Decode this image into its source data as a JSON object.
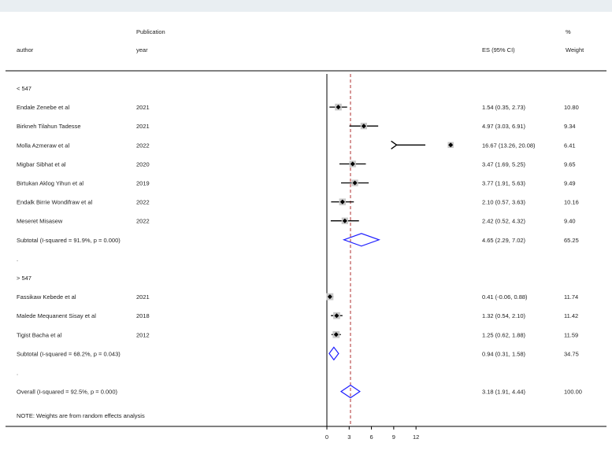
{
  "header": {
    "author": "author",
    "publication": "Publication",
    "year": "year",
    "es": "ES (95% CI)",
    "pct": "%",
    "weight": "Weight"
  },
  "note": "NOTE: Weights are from random effects analysis",
  "colors": {
    "diamond": "#1f1fff",
    "line": "#000000",
    "dashed": "#b03030",
    "background": "#e9eef2"
  },
  "chart_data": {
    "type": "forest",
    "null_line": 0,
    "overall_line": 3.18,
    "x_ticks": [
      "0",
      "3",
      "6",
      "9",
      "12"
    ],
    "xlim": [
      0,
      12
    ],
    "groups": [
      {
        "label": "< 547",
        "studies": [
          {
            "author": "Endale Zenebe et al",
            "year": "2021",
            "es": 1.54,
            "lo": 0.35,
            "hi": 2.73,
            "es_text": "1.54 (0.35, 2.73)",
            "weight": "10.80"
          },
          {
            "author": "Birkneh Tilahun Tadesse",
            "year": "2021",
            "es": 4.97,
            "lo": 3.03,
            "hi": 6.91,
            "es_text": "4.97 (3.03, 6.91)",
            "weight": "9.34"
          },
          {
            "author": "Molla Azmeraw et al",
            "year": "2022",
            "es": 16.67,
            "lo": 13.26,
            "hi": 20.08,
            "es_text": "16.67 (13.26, 20.08)",
            "weight": "6.41"
          },
          {
            "author": "Migbar Sibhat et al",
            "year": "2020",
            "es": 3.47,
            "lo": 1.69,
            "hi": 5.25,
            "es_text": "3.47 (1.69, 5.25)",
            "weight": "9.65"
          },
          {
            "author": "Birtukan Aklog Yihun et al",
            "year": "2019",
            "es": 3.77,
            "lo": 1.91,
            "hi": 5.63,
            "es_text": "3.77 (1.91, 5.63)",
            "weight": "9.49"
          },
          {
            "author": "Endalk Birrie Wondifraw et al",
            "year": "2022",
            "es": 2.1,
            "lo": 0.57,
            "hi": 3.63,
            "es_text": "2.10 (0.57, 3.63)",
            "weight": "10.16"
          },
          {
            "author": "Meseret Misasew",
            "year": "2022",
            "es": 2.42,
            "lo": 0.52,
            "hi": 4.32,
            "es_text": "2.42 (0.52, 4.32)",
            "weight": "9.40"
          }
        ],
        "subtotal": {
          "label": "Subtotal  (I-squared = 91.9%, p = 0.000)",
          "es": 4.65,
          "lo": 2.29,
          "hi": 7.02,
          "es_text": "4.65 (2.29, 7.02)",
          "weight": "65.25"
        }
      },
      {
        "label": "> 547",
        "studies": [
          {
            "author": "Fassikaw Kebede et al",
            "year": "2021",
            "es": 0.41,
            "lo": -0.06,
            "hi": 0.88,
            "es_text": "0.41 (-0.06, 0.88)",
            "weight": "11.74"
          },
          {
            "author": "Malede Mequanent Sisay et al",
            "year": "2018",
            "es": 1.32,
            "lo": 0.54,
            "hi": 2.1,
            "es_text": "1.32 (0.54, 2.10)",
            "weight": "11.42"
          },
          {
            "author": "Tigist Bacha et al",
            "year": "2012",
            "es": 1.25,
            "lo": 0.62,
            "hi": 1.88,
            "es_text": "1.25 (0.62, 1.88)",
            "weight": "11.59"
          }
        ],
        "subtotal": {
          "label": "Subtotal  (I-squared = 68.2%, p = 0.043)",
          "es": 0.94,
          "lo": 0.31,
          "hi": 1.58,
          "es_text": "0.94 (0.31, 1.58)",
          "weight": "34.75"
        }
      }
    ],
    "overall": {
      "label": "Overall  (I-squared = 92.5%, p = 0.000)",
      "es": 3.18,
      "lo": 1.91,
      "hi": 4.44,
      "es_text": "3.18 (1.91, 4.44)",
      "weight": "100.00"
    }
  }
}
